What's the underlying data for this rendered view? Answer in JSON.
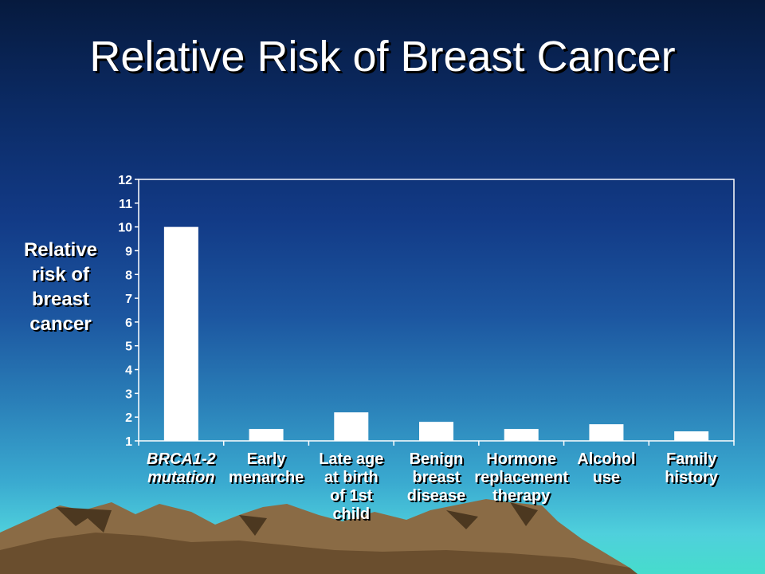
{
  "slide": {
    "title": "Relative Risk of Breast Cancer",
    "ylabel": "Relative\nrisk of\nbreast\ncancer"
  },
  "colors": {
    "bar_fill": "#ffffff",
    "title_text": "#ffffff",
    "axis": "#ffffff"
  },
  "chart_data": {
    "type": "bar",
    "title": "Relative Risk of Breast Cancer",
    "ylabel": "Relative risk of breast cancer",
    "xlabel": "",
    "categories": [
      "BRCA1-2\nmutation",
      "Early\nmenarche",
      "Late age\nat birth\nof 1st\nchild",
      "Benign\nbreast\ndisease",
      "Hormone\nreplacement\ntherapy",
      "Alcohol\nuse",
      "Family\nhistory"
    ],
    "values": [
      10,
      1.5,
      2.2,
      1.8,
      1.5,
      1.7,
      1.4
    ],
    "ylim": [
      1,
      12
    ],
    "yticks": [
      1,
      2,
      3,
      4,
      5,
      6,
      7,
      8,
      9,
      10,
      11,
      12
    ],
    "grid": false,
    "legend": "none"
  }
}
